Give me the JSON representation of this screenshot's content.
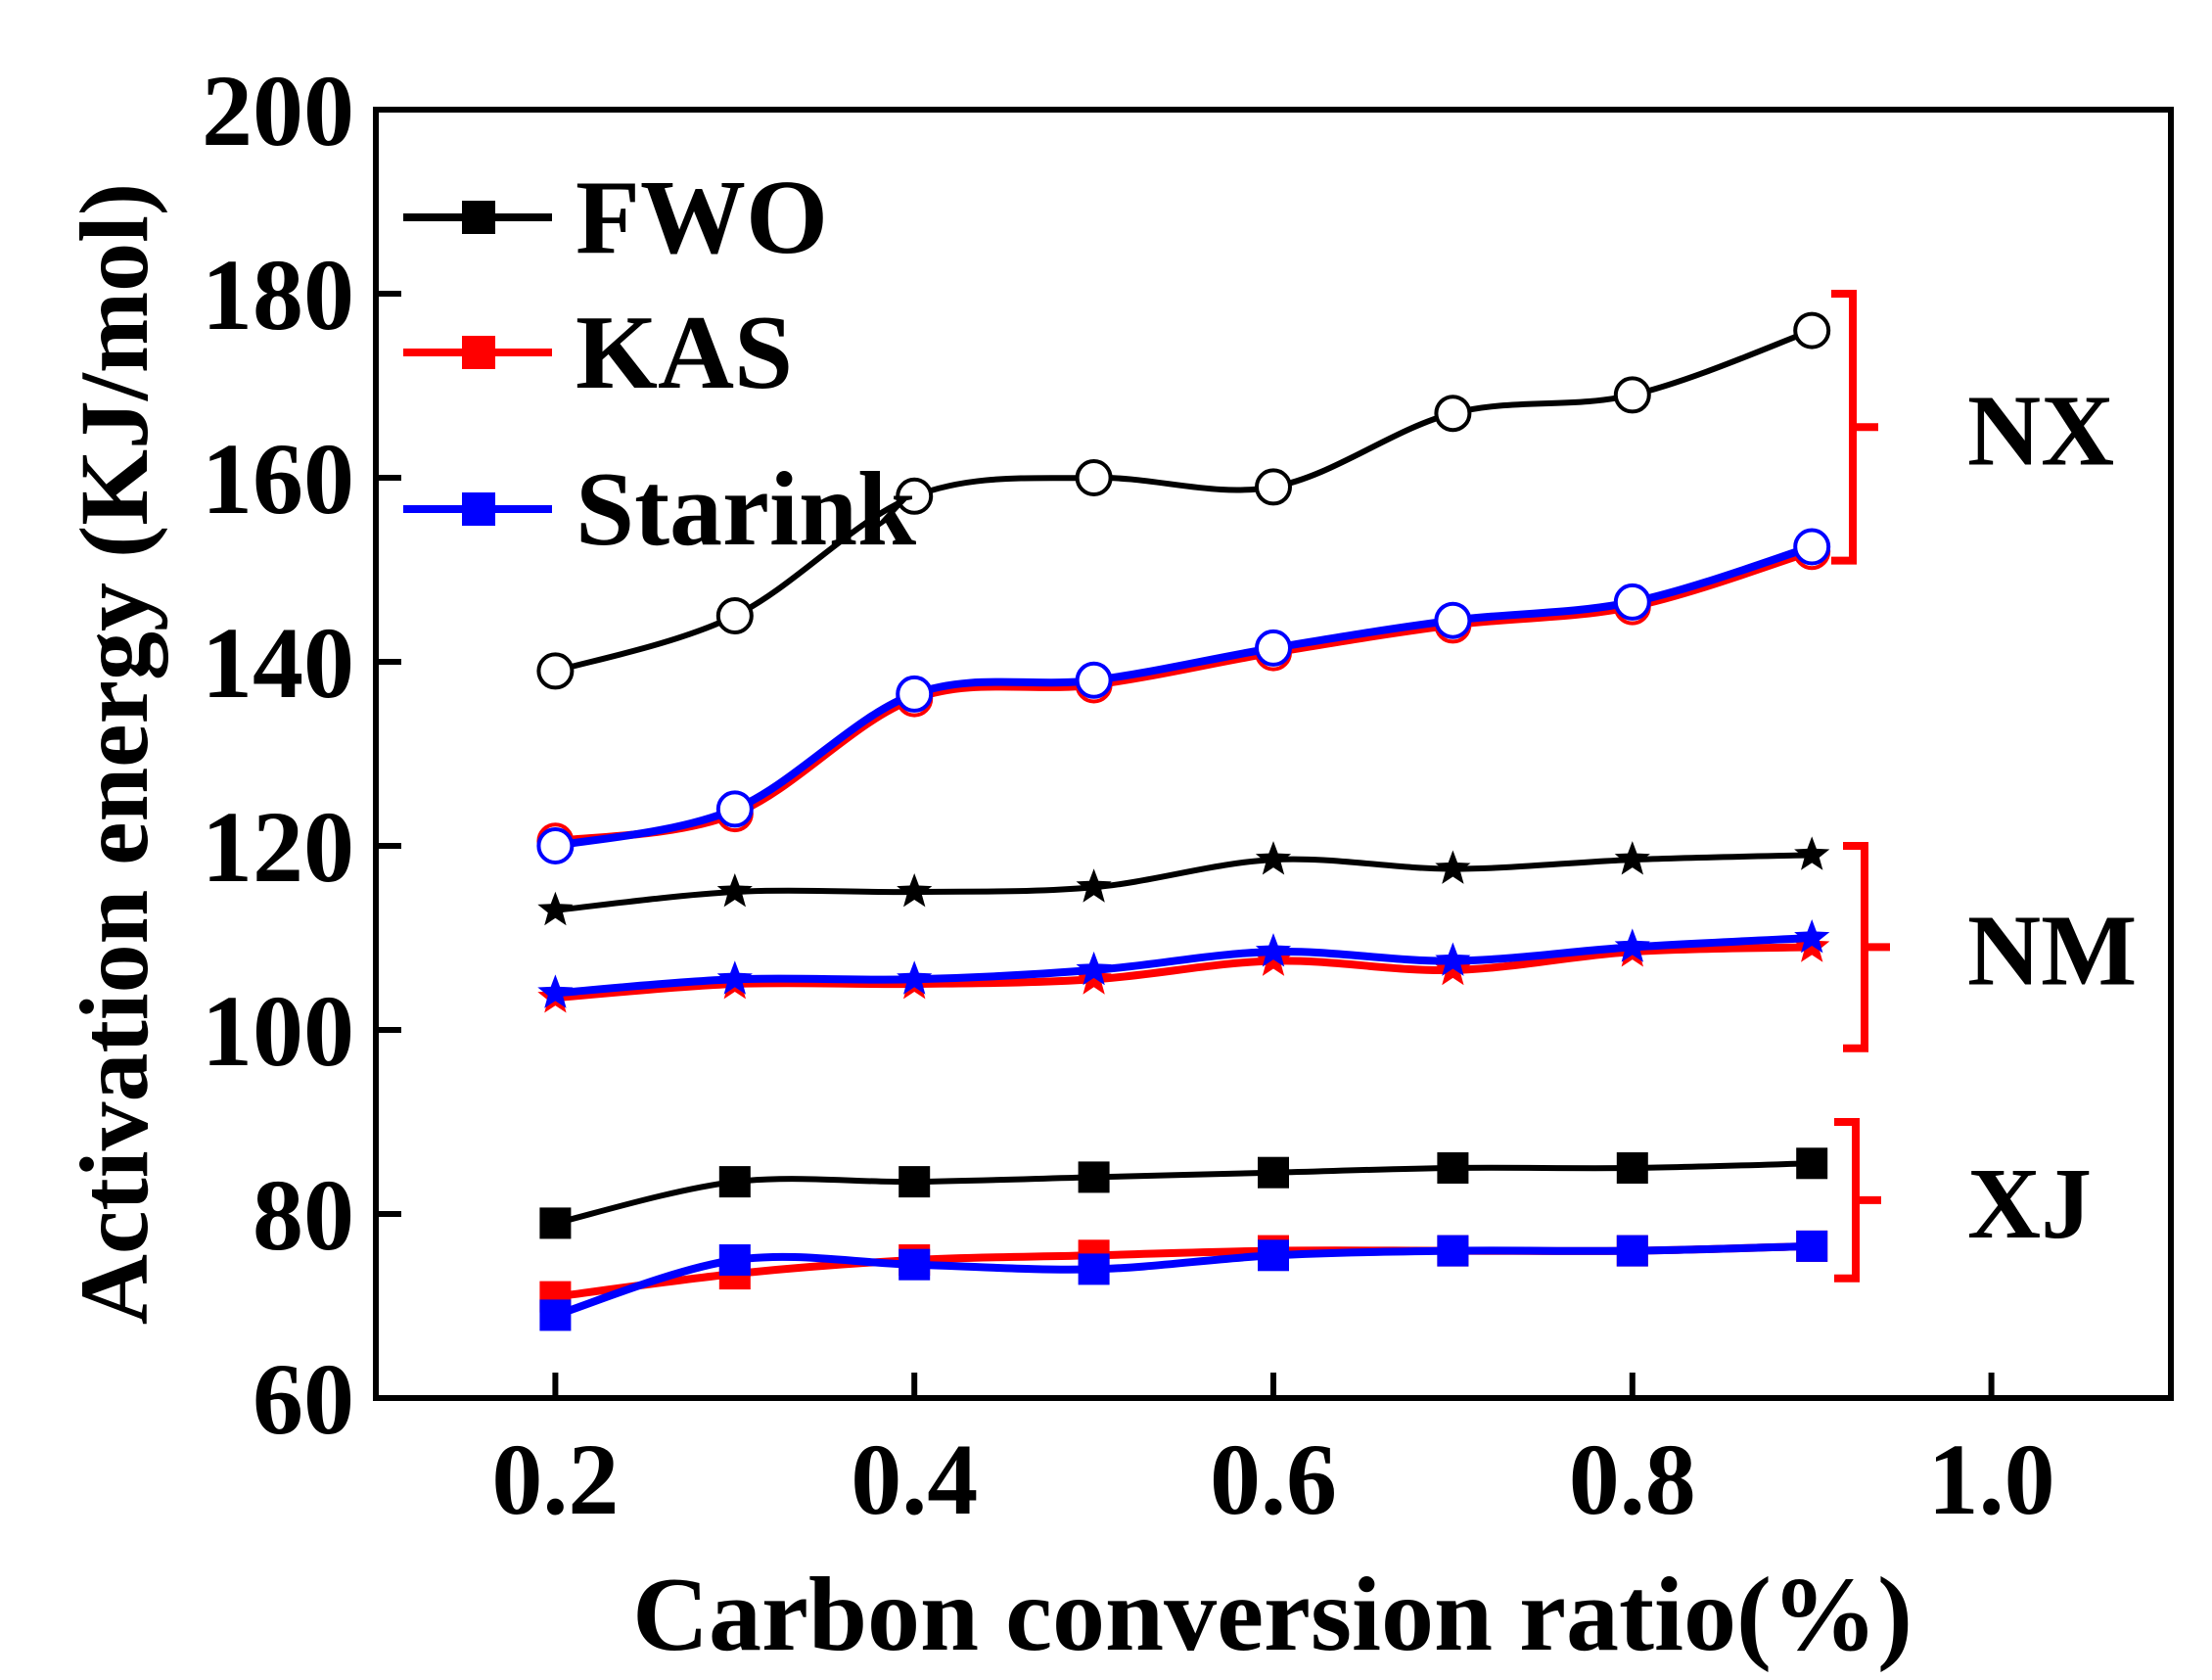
{
  "chart_data": {
    "type": "line",
    "xlabel": "Carbon conversion ratio(%)",
    "ylabel": "Activation energy (KJ/mol)",
    "xlim": [
      0.1,
      1.1
    ],
    "ylim": [
      60,
      200
    ],
    "xticks": [
      0.2,
      0.4,
      0.6,
      0.8,
      1.0
    ],
    "xtick_labels": [
      "0.2",
      "0.4",
      "0.6",
      "0.8",
      "1.0"
    ],
    "yticks": [
      60,
      80,
      100,
      120,
      140,
      160,
      180,
      200
    ],
    "ytick_labels": [
      "60",
      "80",
      "100",
      "120",
      "140",
      "160",
      "180",
      "200"
    ],
    "x": [
      0.2,
      0.3,
      0.4,
      0.5,
      0.6,
      0.7,
      0.8,
      0.9
    ],
    "legend": {
      "placement": "top-left",
      "entries": [
        {
          "label": "FWO",
          "color": "#000000"
        },
        {
          "label": "KAS",
          "color": "#ff0000"
        },
        {
          "label": "Starink",
          "color": "#0000ff"
        }
      ]
    },
    "groups": [
      {
        "label": "NX",
        "marker": "circle",
        "y_range": [
          151,
          180
        ]
      },
      {
        "label": "NM",
        "marker": "star",
        "y_range": [
          98,
          120
        ]
      },
      {
        "label": "XJ",
        "marker": "square",
        "y_range": [
          73,
          90
        ]
      }
    ],
    "series": [
      {
        "name": "FWO",
        "group": "NX",
        "marker": "circle",
        "color": "#000000",
        "values": [
          139.0,
          145.0,
          158.0,
          160.0,
          159.0,
          167.0,
          169.0,
          176.0
        ]
      },
      {
        "name": "KAS",
        "group": "NX",
        "marker": "circle",
        "color": "#ff0000",
        "values": [
          120.5,
          123.5,
          136.0,
          137.5,
          141.0,
          144.0,
          146.0,
          152.0
        ]
      },
      {
        "name": "Starink",
        "group": "NX",
        "marker": "circle",
        "color": "#0000ff",
        "values": [
          120.0,
          124.0,
          136.5,
          138.0,
          141.5,
          144.5,
          146.5,
          152.5
        ]
      },
      {
        "name": "FWO",
        "group": "NM",
        "marker": "star",
        "color": "#000000",
        "values": [
          113.0,
          115.0,
          115.0,
          115.5,
          118.5,
          117.5,
          118.5,
          119.0
        ]
      },
      {
        "name": "KAS",
        "group": "NM",
        "marker": "star",
        "color": "#ff0000",
        "values": [
          103.5,
          105.0,
          105.0,
          105.5,
          107.5,
          106.5,
          108.5,
          109.0
        ]
      },
      {
        "name": "Starink",
        "group": "NM",
        "marker": "star",
        "color": "#0000ff",
        "values": [
          104.0,
          105.5,
          105.5,
          106.5,
          108.5,
          107.5,
          109.0,
          110.0
        ]
      },
      {
        "name": "FWO",
        "group": "XJ",
        "marker": "square",
        "color": "#000000",
        "values": [
          79.0,
          83.5,
          83.5,
          84.0,
          84.5,
          85.0,
          85.0,
          85.5
        ]
      },
      {
        "name": "KAS",
        "group": "XJ",
        "marker": "square",
        "color": "#ff0000",
        "values": [
          71.0,
          73.5,
          75.0,
          75.5,
          76.0,
          76.0,
          76.0,
          76.5
        ]
      },
      {
        "name": "Starink",
        "group": "XJ",
        "marker": "square",
        "color": "#0000ff",
        "values": [
          69.0,
          75.0,
          74.5,
          74.0,
          75.5,
          76.0,
          76.0,
          76.5
        ]
      }
    ]
  }
}
